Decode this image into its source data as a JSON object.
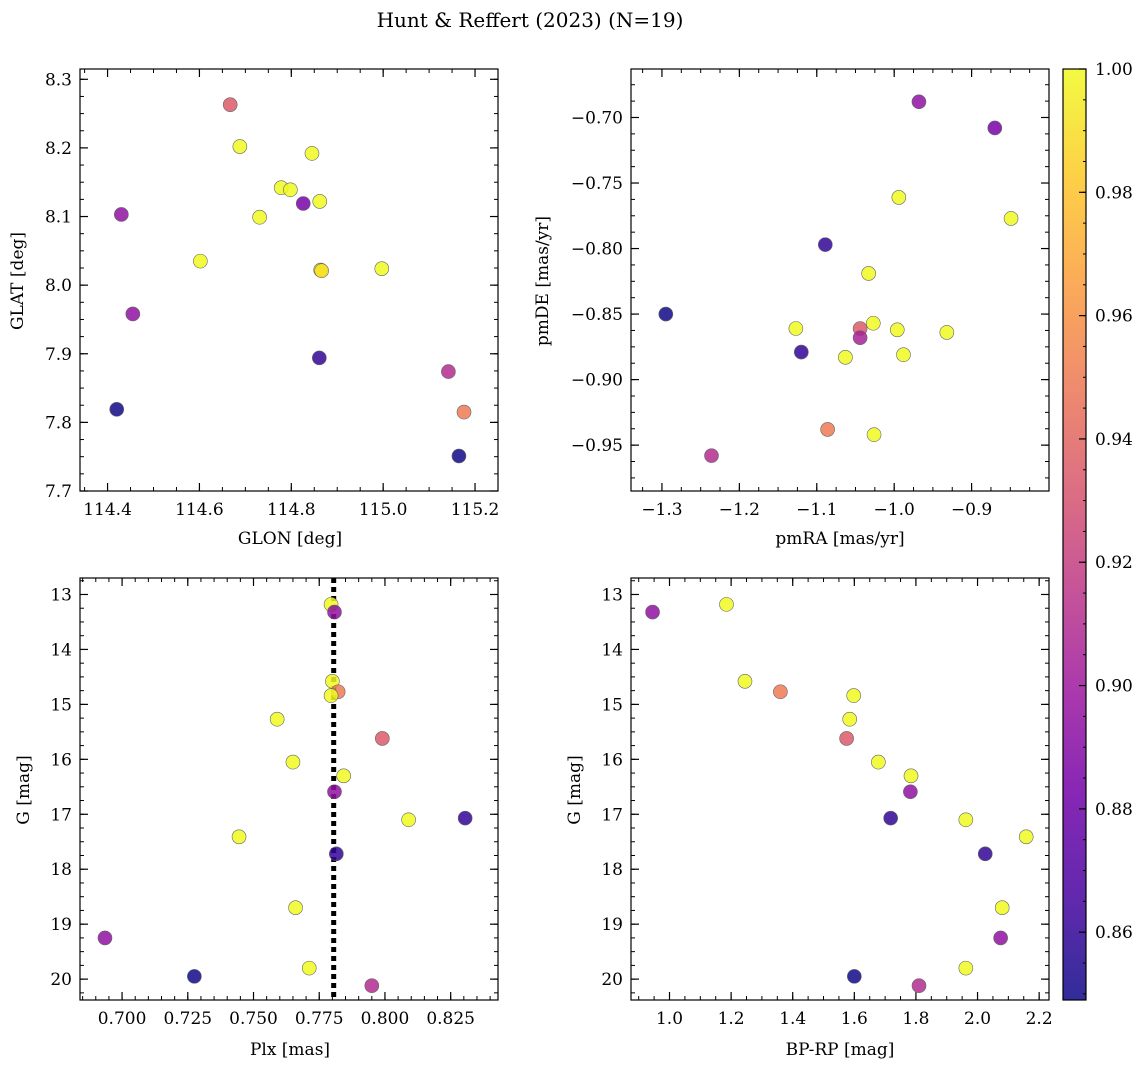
{
  "title": "Hunt & Reffert (2023) (N=19)",
  "colorbar": {
    "min": 0.849,
    "max": 1.0,
    "ticks": [
      0.86,
      0.88,
      0.9,
      0.92,
      0.94,
      0.96,
      0.98,
      1.0
    ],
    "tick_labels": [
      "0.86",
      "0.88",
      "0.90",
      "0.92",
      "0.94",
      "0.96",
      "0.98",
      "1.00"
    ],
    "colormap": [
      "#0d0887",
      "#46039f",
      "#7201a8",
      "#9c179e",
      "#bd3786",
      "#d8576b",
      "#ed7953",
      "#fb9f3a",
      "#fdca26",
      "#f0f921"
    ]
  },
  "chart_data": [
    {
      "type": "scatter",
      "name": "glon-glat",
      "xlabel": "GLON [deg]",
      "ylabel": "GLAT [deg]",
      "xlim": [
        114.34,
        115.25
      ],
      "ylim": [
        7.7,
        8.315
      ],
      "y_inverted": false,
      "xticks": [
        114.4,
        114.6,
        114.8,
        115.0,
        115.2
      ],
      "xtick_labels": [
        "114.4",
        "114.6",
        "114.8",
        "115.0",
        "115.2"
      ],
      "yticks": [
        7.7,
        7.8,
        7.9,
        8.0,
        8.1,
        8.2,
        8.3
      ],
      "ytick_labels": [
        "7.7",
        "7.8",
        "7.9",
        "8.0",
        "8.1",
        "8.2",
        "8.3"
      ],
      "x_minor": 0.05,
      "y_minor": 0.025,
      "points": [
        {
          "x": 114.667,
          "y": 8.263,
          "c": 0.935
        },
        {
          "x": 114.688,
          "y": 8.202,
          "c": 1.0
        },
        {
          "x": 114.845,
          "y": 8.192,
          "c": 1.0
        },
        {
          "x": 114.778,
          "y": 8.142,
          "c": 1.0
        },
        {
          "x": 114.798,
          "y": 8.139,
          "c": 1.0
        },
        {
          "x": 114.862,
          "y": 8.122,
          "c": 1.0
        },
        {
          "x": 114.826,
          "y": 8.119,
          "c": 0.885
        },
        {
          "x": 114.43,
          "y": 8.103,
          "c": 0.895
        },
        {
          "x": 114.731,
          "y": 8.099,
          "c": 1.0
        },
        {
          "x": 114.602,
          "y": 8.035,
          "c": 1.0
        },
        {
          "x": 114.997,
          "y": 8.024,
          "c": 1.0
        },
        {
          "x": 114.864,
          "y": 8.022,
          "c": 1.0
        },
        {
          "x": 114.866,
          "y": 8.021,
          "c": 0.99
        },
        {
          "x": 114.455,
          "y": 7.958,
          "c": 0.895
        },
        {
          "x": 114.861,
          "y": 7.894,
          "c": 0.86
        },
        {
          "x": 115.142,
          "y": 7.874,
          "c": 0.91
        },
        {
          "x": 114.42,
          "y": 7.819,
          "c": 0.85
        },
        {
          "x": 115.176,
          "y": 7.815,
          "c": 0.95
        },
        {
          "x": 115.165,
          "y": 7.751,
          "c": 0.85
        }
      ]
    },
    {
      "type": "scatter",
      "name": "pmra-pmde",
      "xlabel": "pmRA [mas/yr]",
      "ylabel": "pmDE [mas/yr]",
      "xlim": [
        -1.34,
        -0.8
      ],
      "ylim": [
        -0.985,
        -0.663
      ],
      "y_inverted": false,
      "xticks": [
        -1.3,
        -1.2,
        -1.1,
        -1.0,
        -0.9
      ],
      "xtick_labels": [
        "−1.3",
        "−1.2",
        "−1.1",
        "−1.0",
        "−0.9"
      ],
      "yticks": [
        -0.95,
        -0.9,
        -0.85,
        -0.8,
        -0.75,
        -0.7
      ],
      "ytick_labels": [
        "−0.95",
        "−0.90",
        "−0.85",
        "−0.80",
        "−0.75",
        "−0.70"
      ],
      "x_minor": 0.025,
      "y_minor": 0.0125,
      "points": [
        {
          "x": -0.968,
          "y": -0.688,
          "c": 0.895
        },
        {
          "x": -0.87,
          "y": -0.708,
          "c": 0.885
        },
        {
          "x": -0.994,
          "y": -0.761,
          "c": 1.0
        },
        {
          "x": -0.849,
          "y": -0.777,
          "c": 1.0
        },
        {
          "x": -1.089,
          "y": -0.797,
          "c": 0.86
        },
        {
          "x": -1.033,
          "y": -0.819,
          "c": 1.0
        },
        {
          "x": -1.295,
          "y": -0.85,
          "c": 0.85
        },
        {
          "x": -0.932,
          "y": -0.864,
          "c": 1.0
        },
        {
          "x": -1.127,
          "y": -0.861,
          "c": 1.0
        },
        {
          "x": -1.044,
          "y": -0.861,
          "c": 0.935
        },
        {
          "x": -1.027,
          "y": -0.857,
          "c": 1.0
        },
        {
          "x": -0.996,
          "y": -0.862,
          "c": 1.0
        },
        {
          "x": -1.044,
          "y": -0.868,
          "c": 0.905
        },
        {
          "x": -1.12,
          "y": -0.879,
          "c": 0.86
        },
        {
          "x": -0.988,
          "y": -0.881,
          "c": 1.0
        },
        {
          "x": -1.063,
          "y": -0.883,
          "c": 1.0
        },
        {
          "x": -1.086,
          "y": -0.938,
          "c": 0.95
        },
        {
          "x": -1.026,
          "y": -0.942,
          "c": 1.0
        },
        {
          "x": -1.236,
          "y": -0.958,
          "c": 0.91
        }
      ]
    },
    {
      "type": "scatter",
      "name": "plx-g",
      "xlabel": "Plx [mas]",
      "ylabel": "G [mag]",
      "xlim": [
        0.684,
        0.843
      ],
      "ylim": [
        12.7,
        20.38
      ],
      "y_inverted": true,
      "xticks": [
        0.7,
        0.725,
        0.75,
        0.775,
        0.8,
        0.825
      ],
      "xtick_labels": [
        "0.700",
        "0.725",
        "0.750",
        "0.775",
        "0.800",
        "0.825"
      ],
      "yticks": [
        13,
        14,
        15,
        16,
        17,
        18,
        19,
        20
      ],
      "ytick_labels": [
        "13",
        "14",
        "15",
        "16",
        "17",
        "18",
        "19",
        "20"
      ],
      "x_minor": 0.005,
      "y_minor": 0.25,
      "vline": {
        "x": 0.7805,
        "style": "dotted"
      },
      "points": [
        {
          "x": 0.7795,
          "y": 13.18,
          "c": 1.0
        },
        {
          "x": 0.7808,
          "y": 13.32,
          "c": 0.895
        },
        {
          "x": 0.78,
          "y": 14.58,
          "c": 1.0
        },
        {
          "x": 0.7822,
          "y": 14.77,
          "c": 0.95
        },
        {
          "x": 0.7795,
          "y": 14.84,
          "c": 1.0
        },
        {
          "x": 0.759,
          "y": 15.27,
          "c": 1.0
        },
        {
          "x": 0.799,
          "y": 15.62,
          "c": 0.935
        },
        {
          "x": 0.765,
          "y": 16.05,
          "c": 1.0
        },
        {
          "x": 0.7843,
          "y": 16.3,
          "c": 1.0
        },
        {
          "x": 0.7808,
          "y": 16.59,
          "c": 0.895
        },
        {
          "x": 0.8305,
          "y": 17.07,
          "c": 0.86
        },
        {
          "x": 0.809,
          "y": 17.1,
          "c": 1.0
        },
        {
          "x": 0.7445,
          "y": 17.41,
          "c": 1.0
        },
        {
          "x": 0.7815,
          "y": 17.72,
          "c": 0.86
        },
        {
          "x": 0.766,
          "y": 18.7,
          "c": 1.0
        },
        {
          "x": 0.6935,
          "y": 19.25,
          "c": 0.895
        },
        {
          "x": 0.7275,
          "y": 19.95,
          "c": 0.85
        },
        {
          "x": 0.7712,
          "y": 19.8,
          "c": 1.0
        },
        {
          "x": 0.795,
          "y": 20.12,
          "c": 0.91
        }
      ]
    },
    {
      "type": "scatter",
      "name": "bprp-g",
      "xlabel": "BP-RP [mag]",
      "ylabel": "G [mag]",
      "xlim": [
        0.875,
        2.232
      ],
      "ylim": [
        12.7,
        20.38
      ],
      "y_inverted": true,
      "xticks": [
        1.0,
        1.2,
        1.4,
        1.6,
        1.8,
        2.0,
        2.2
      ],
      "xtick_labels": [
        "1.0",
        "1.2",
        "1.4",
        "1.6",
        "1.8",
        "2.0",
        "2.2"
      ],
      "yticks": [
        13,
        14,
        15,
        16,
        17,
        18,
        19,
        20
      ],
      "ytick_labels": [
        "13",
        "14",
        "15",
        "16",
        "17",
        "18",
        "19",
        "20"
      ],
      "x_minor": 0.05,
      "y_minor": 0.25,
      "points": [
        {
          "x": 0.945,
          "y": 13.32,
          "c": 0.895
        },
        {
          "x": 1.185,
          "y": 13.18,
          "c": 1.0
        },
        {
          "x": 1.245,
          "y": 14.58,
          "c": 1.0
        },
        {
          "x": 1.36,
          "y": 14.77,
          "c": 0.95
        },
        {
          "x": 1.598,
          "y": 14.84,
          "c": 1.0
        },
        {
          "x": 1.585,
          "y": 15.27,
          "c": 1.0
        },
        {
          "x": 1.575,
          "y": 15.62,
          "c": 0.935
        },
        {
          "x": 1.678,
          "y": 16.05,
          "c": 1.0
        },
        {
          "x": 1.784,
          "y": 16.3,
          "c": 1.0
        },
        {
          "x": 1.782,
          "y": 16.59,
          "c": 0.895
        },
        {
          "x": 1.718,
          "y": 17.07,
          "c": 0.86
        },
        {
          "x": 1.962,
          "y": 17.1,
          "c": 1.0
        },
        {
          "x": 2.158,
          "y": 17.41,
          "c": 1.0
        },
        {
          "x": 2.025,
          "y": 17.72,
          "c": 0.86
        },
        {
          "x": 2.08,
          "y": 18.7,
          "c": 1.0
        },
        {
          "x": 2.075,
          "y": 19.25,
          "c": 0.895
        },
        {
          "x": 1.6,
          "y": 19.95,
          "c": 0.85
        },
        {
          "x": 1.962,
          "y": 19.8,
          "c": 1.0
        },
        {
          "x": 1.81,
          "y": 20.12,
          "c": 0.91
        }
      ]
    }
  ]
}
